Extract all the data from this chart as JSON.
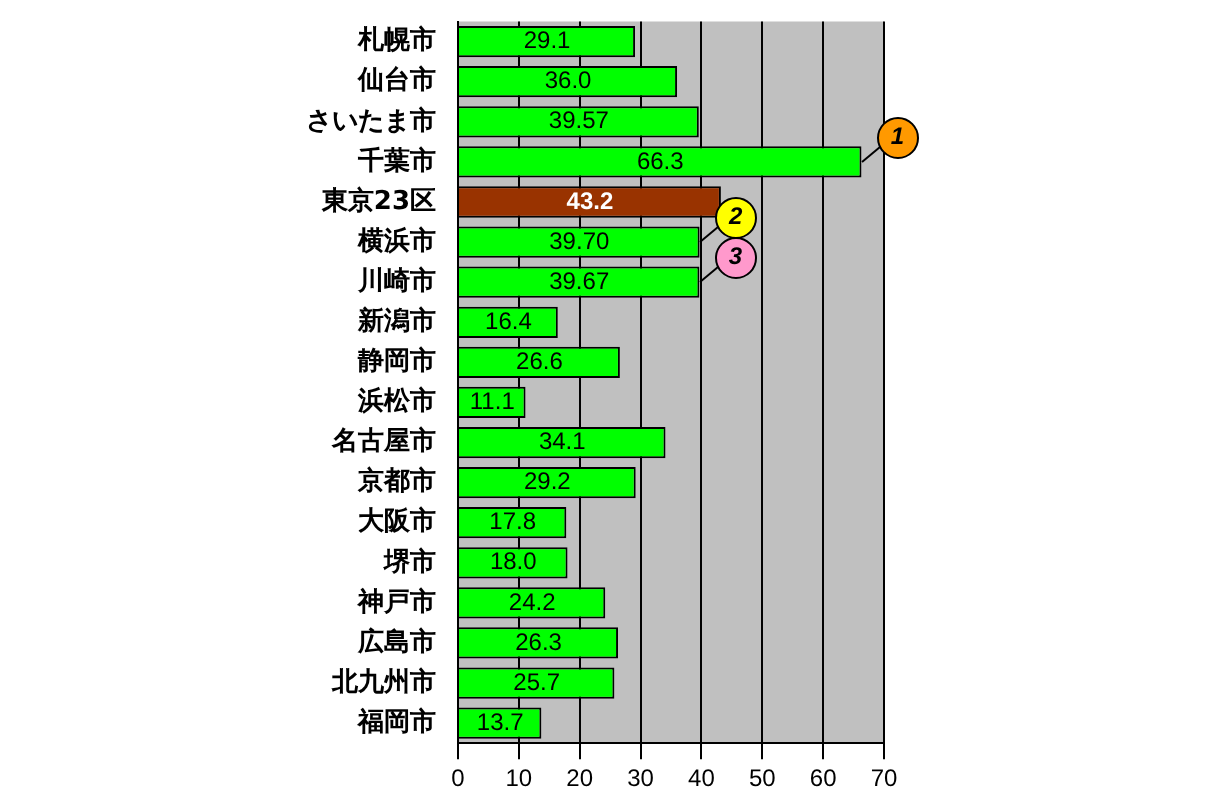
{
  "chart_data": {
    "type": "bar",
    "orientation": "horizontal",
    "categories": [
      "札幌市",
      "仙台市",
      "さいたま市",
      "千葉市",
      "東京23区",
      "横浜市",
      "川崎市",
      "新潟市",
      "静岡市",
      "浜松市",
      "名古屋市",
      "京都市",
      "大阪市",
      "堺市",
      "神戸市",
      "広島市",
      "北九州市",
      "福岡市"
    ],
    "values": [
      29.1,
      36.0,
      39.57,
      66.3,
      43.2,
      39.7,
      39.67,
      16.4,
      26.6,
      11.1,
      34.1,
      29.2,
      17.8,
      18.0,
      24.2,
      26.3,
      25.7,
      13.7
    ],
    "value_labels": [
      "29.1",
      "36.0",
      "39.57",
      "66.3",
      "43.2",
      "39.70",
      "39.67",
      "16.4",
      "26.6",
      "11.1",
      "34.1",
      "29.2",
      "17.8",
      "18.0",
      "24.2",
      "26.3",
      "25.7",
      "13.7"
    ],
    "colors": [
      "#00ff00",
      "#00ff00",
      "#00ff00",
      "#00ff00",
      "#993300",
      "#00ff00",
      "#00ff00",
      "#00ff00",
      "#00ff00",
      "#00ff00",
      "#00ff00",
      "#00ff00",
      "#00ff00",
      "#00ff00",
      "#00ff00",
      "#00ff00",
      "#00ff00",
      "#00ff00"
    ],
    "xlim": [
      0,
      70
    ],
    "xticks": [
      0,
      10,
      20,
      30,
      40,
      50,
      60,
      70
    ],
    "grid": "x",
    "legend": false,
    "annotations": [
      {
        "text": "1",
        "x": 66.3,
        "y": "千葉市"
      },
      {
        "text": "2",
        "x": 39.7,
        "y": "横浜市"
      },
      {
        "text": "3",
        "x": 39.67,
        "y": "川崎市"
      }
    ]
  }
}
